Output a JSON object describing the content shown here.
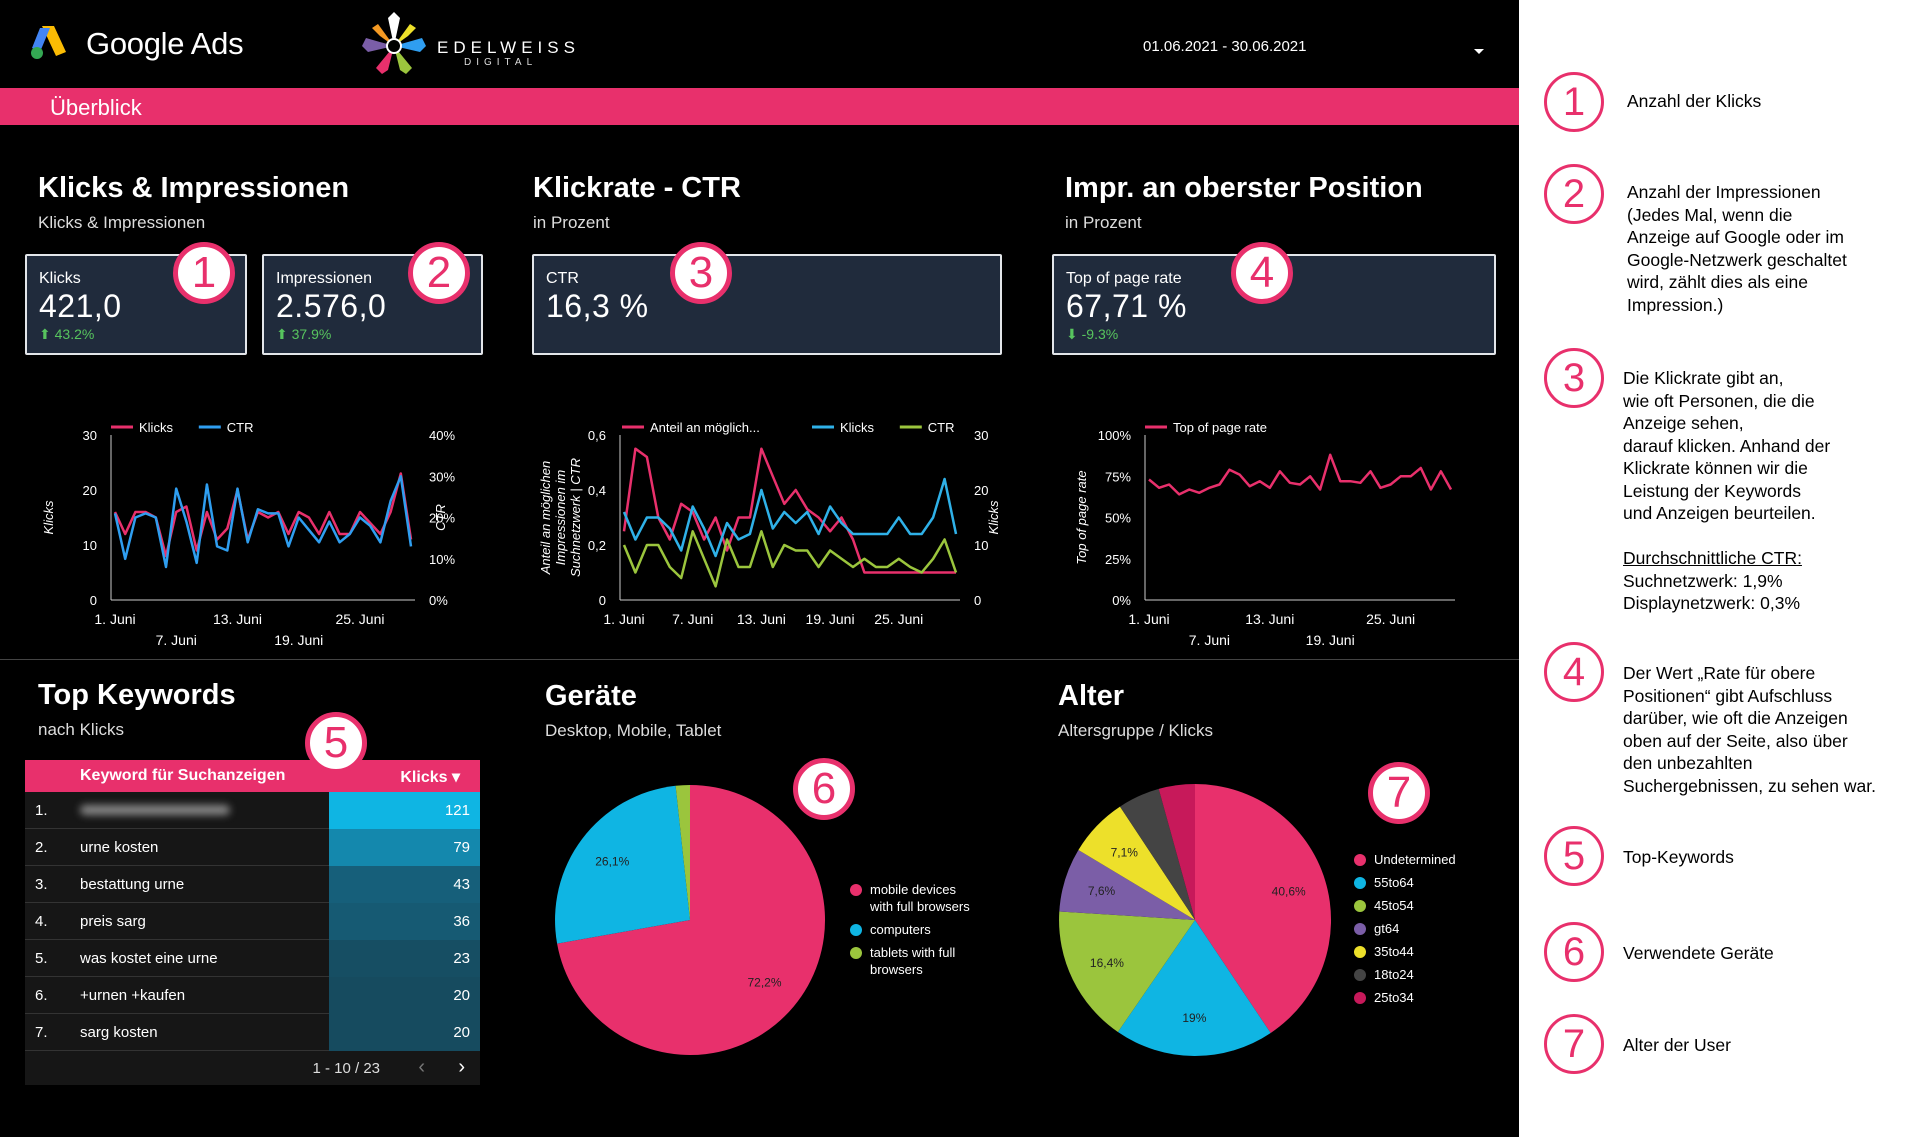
{
  "header": {
    "google_ads_label": "Google Ads",
    "brand_name": "EDELWEISS",
    "brand_sub": "DIGITAL",
    "date_range": "01.06.2021 - 30.06.2021",
    "dropdown_icon": "caret-down-icon"
  },
  "tab_bar": {
    "label": "Überblick"
  },
  "section_klicks": {
    "title": "Klicks & Impressionen",
    "subtitle": "Klicks & Impressionen",
    "card_klicks": {
      "label": "Klicks",
      "value": "421,0",
      "delta": "⬆ 43.2%"
    },
    "card_impr": {
      "label": "Impressionen",
      "value": "2.576,0",
      "delta": "⬆ 37.9%"
    }
  },
  "section_ctr": {
    "title": "Klickrate - CTR",
    "subtitle": "in Prozent",
    "card": {
      "label": "CTR",
      "value": "16,3 %"
    }
  },
  "section_top": {
    "title": "Impr. an oberster Position",
    "subtitle": "in Prozent",
    "card": {
      "label": "Top of page rate",
      "value": "67,71 %",
      "delta": "⬇ -9.3%"
    }
  },
  "badges": [
    "1",
    "2",
    "3",
    "4",
    "5",
    "6",
    "7"
  ],
  "chart_data": [
    {
      "type": "line",
      "title": "",
      "legend": [
        "Klicks",
        "CTR"
      ],
      "colors": [
        "#e8306c",
        "#2f9ef0"
      ],
      "y_left": {
        "label": "Klicks",
        "ticks": [
          "30",
          "20",
          "10",
          "0"
        ],
        "ylim": [
          0,
          30
        ]
      },
      "y_right": {
        "label": "CTR",
        "ticks": [
          "40%",
          "30%",
          "20%",
          "10%",
          "0%"
        ],
        "ylim": [
          0,
          40
        ]
      },
      "x_ticks_top": [
        "1. Juni",
        "13. Juni",
        "25. Juni"
      ],
      "x_ticks_bottom": [
        "7. Juni",
        "19. Juni"
      ],
      "series": [
        {
          "name": "Klicks",
          "values": [
            16,
            12,
            16,
            16,
            15,
            8,
            16,
            17,
            9,
            16,
            11,
            13,
            20,
            11,
            16,
            15,
            16,
            12,
            16,
            15,
            12,
            16,
            12,
            12,
            16,
            14,
            12,
            16,
            23,
            11
          ]
        },
        {
          "name": "CTR",
          "values": [
            21,
            10,
            20,
            21,
            20,
            8,
            27,
            19,
            9,
            28,
            13,
            12,
            27,
            14,
            22,
            21,
            21,
            13,
            20,
            17,
            14,
            19,
            14,
            16,
            20,
            18,
            14,
            24,
            30,
            13
          ]
        }
      ]
    },
    {
      "type": "line",
      "title": "",
      "legend": [
        "Anteil an möglich...",
        "Klicks",
        "CTR"
      ],
      "colors": [
        "#e8306c",
        "#2fb1e8",
        "#9bc53d"
      ],
      "y_left": {
        "label": "Anteil an möglichen Impressionen im Suchnetzwerk | CTR",
        "ticks": [
          "0,6",
          "0,4",
          "0,2",
          "0"
        ],
        "ylim": [
          0,
          0.6
        ]
      },
      "y_right": {
        "label": "Klicks",
        "ticks": [
          "30",
          "20",
          "10",
          "0"
        ],
        "ylim": [
          0,
          30
        ]
      },
      "x_ticks": [
        "1. Juni",
        "7. Juni",
        "13. Juni",
        "19. Juni",
        "25. Juni"
      ],
      "series": [
        {
          "name": "Anteil an möglich...",
          "values": [
            0.25,
            0.55,
            0.52,
            0.3,
            0.22,
            0.35,
            0.32,
            0.22,
            0.3,
            0.18,
            0.3,
            0.3,
            0.55,
            0.45,
            0.35,
            0.4,
            0.33,
            0.3,
            0.25,
            0.3,
            0.22,
            0.1,
            0.1,
            0.1,
            0.1,
            0.1,
            0.1,
            0.1,
            0.1,
            0.1
          ]
        },
        {
          "name": "Klicks",
          "values": [
            16,
            11,
            15,
            15,
            13,
            9,
            17,
            13,
            8,
            14,
            11,
            12,
            20,
            13,
            16,
            14,
            16,
            12,
            17,
            14,
            12,
            12,
            12,
            12,
            15,
            12,
            12,
            15,
            22,
            12
          ]
        },
        {
          "name": "CTR",
          "values": [
            0.2,
            0.1,
            0.2,
            0.2,
            0.12,
            0.08,
            0.25,
            0.15,
            0.05,
            0.22,
            0.12,
            0.12,
            0.25,
            0.12,
            0.2,
            0.18,
            0.18,
            0.12,
            0.18,
            0.15,
            0.12,
            0.15,
            0.12,
            0.12,
            0.15,
            0.12,
            0.1,
            0.15,
            0.22,
            0.1
          ]
        }
      ]
    },
    {
      "type": "line",
      "title": "",
      "legend": [
        "Top of page rate"
      ],
      "colors": [
        "#e8306c"
      ],
      "y_left": {
        "label": "Top of page rate",
        "ticks": [
          "100%",
          "75%",
          "50%",
          "25%",
          "0%"
        ],
        "ylim": [
          0,
          100
        ]
      },
      "x_ticks_top": [
        "1. Juni",
        "13. Juni",
        "25. Juni"
      ],
      "x_ticks_bottom": [
        "7. Juni",
        "19. Juni"
      ],
      "series": [
        {
          "name": "Top of page rate",
          "values": [
            73,
            68,
            70,
            64,
            67,
            65,
            68,
            70,
            79,
            76,
            69,
            72,
            68,
            78,
            71,
            70,
            75,
            67,
            88,
            72,
            72,
            71,
            78,
            68,
            70,
            75,
            75,
            80,
            67,
            78,
            67
          ]
        }
      ]
    },
    {
      "type": "pie",
      "title": "Geräte",
      "categories": [
        "mobile devices with full browsers",
        "computers",
        "tablets with full browsers"
      ],
      "values": [
        72.2,
        26.1,
        1.7
      ],
      "labels": [
        "72,2%",
        "26,1%",
        ""
      ],
      "colors": [
        "#e8306c",
        "#0fb5e3",
        "#9bc53d"
      ]
    },
    {
      "type": "pie",
      "title": "Alter",
      "categories": [
        "Undetermined",
        "55to64",
        "45to54",
        "gt64",
        "35to44",
        "18to24",
        "25to34"
      ],
      "values": [
        40.6,
        19,
        16.4,
        7.6,
        7.1,
        5.0,
        4.3
      ],
      "labels": [
        "40,6%",
        "19%",
        "16,4%",
        "7,6%",
        "7,1%",
        "",
        ""
      ],
      "colors": [
        "#e8306c",
        "#0fb5e3",
        "#9bc53d",
        "#7b5ea7",
        "#ede02a",
        "#444444",
        "#c7195a"
      ]
    }
  ],
  "section_keywords": {
    "title": "Top Keywords",
    "subtitle": "nach Klicks",
    "col_keyword": "Keyword für Suchanzeigen",
    "col_klicks": "Klicks ▾",
    "rows": [
      {
        "n": "1.",
        "k": "",
        "v": "121"
      },
      {
        "n": "2.",
        "k": "urne kosten",
        "v": "79"
      },
      {
        "n": "3.",
        "k": "bestattung urne",
        "v": "43"
      },
      {
        "n": "4.",
        "k": "preis sarg",
        "v": "36"
      },
      {
        "n": "5.",
        "k": "was kostet eine urne",
        "v": "23"
      },
      {
        "n": "6.",
        "k": "+urnen +kaufen",
        "v": "20"
      },
      {
        "n": "7.",
        "k": "sarg kosten",
        "v": "20"
      }
    ],
    "pagination": "1 - 10 / 23",
    "prev": "‹",
    "next": "›"
  },
  "section_devices": {
    "title": "Geräte",
    "subtitle": "Desktop, Mobile, Tablet"
  },
  "section_age": {
    "title": "Alter",
    "subtitle": "Altersgruppe / Klicks"
  },
  "sidebar": {
    "items": [
      {
        "n": "1",
        "text": "Anzahl der Klicks"
      },
      {
        "n": "2",
        "text": "Anzahl der Impressionen\n(Jedes Mal, wenn die\nAnzeige auf Google oder im\nGoogle-Netzwerk geschaltet\nwird, zählt dies als eine\nImpression.)"
      },
      {
        "n": "3",
        "text": "Die Klickrate gibt an,\nwie oft Personen, die die\nAnzeige sehen,\ndarauf klicken. Anhand der\nKlickrate können wir die\nLeistung der Keywords\nund Anzeigen beurteilen."
      },
      {
        "n": "4",
        "text": "Der Wert „Rate für obere\nPositionen“ gibt Aufschluss\ndarüber, wie oft die Anzeigen\noben auf der Seite, also über\nden unbezahlten\nSuchergebnissen, zu sehen war."
      },
      {
        "n": "5",
        "text": "Top-Keywords"
      },
      {
        "n": "6",
        "text": "Verwendete Geräte"
      },
      {
        "n": "7",
        "text": "Alter der User"
      }
    ],
    "ctr_heading": "Durchschnittliche CTR:",
    "ctr_search": "Suchnetzwerk: 1,9%",
    "ctr_display": "Displaynetzwerk: 0,3%"
  }
}
